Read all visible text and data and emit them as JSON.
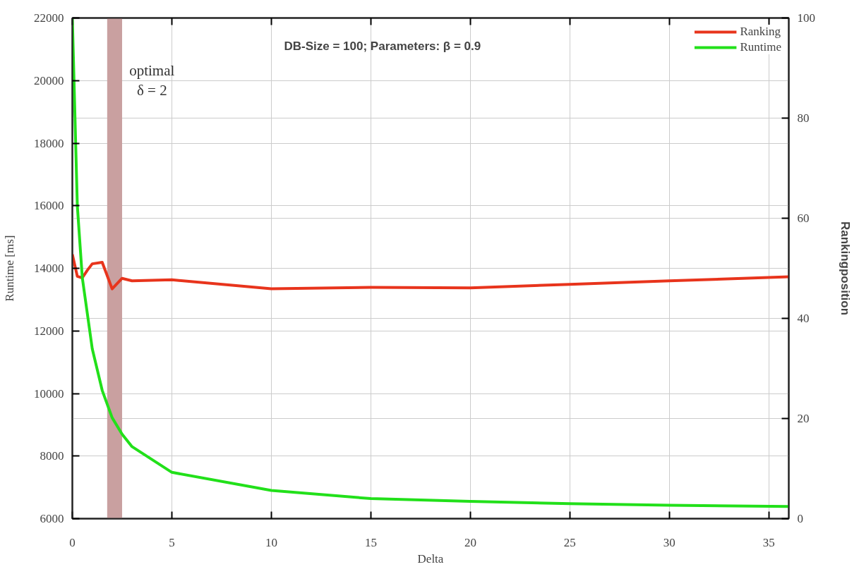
{
  "chart_data": {
    "type": "line",
    "title": "DB-Size = 100; Parameters: β = 0.9",
    "xlabel": "Delta",
    "ylabel": "Runtime [ms]",
    "y2label": "Rankingposition",
    "xlim": [
      0,
      36
    ],
    "xticks": [
      0,
      5,
      10,
      15,
      20,
      25,
      30,
      35
    ],
    "ylim": [
      6000,
      22000
    ],
    "yticks": [
      6000,
      8000,
      10000,
      12000,
      14000,
      16000,
      18000,
      20000,
      22000
    ],
    "y2lim": [
      0,
      100
    ],
    "y2ticks": [
      0,
      20,
      40,
      60,
      80,
      100
    ],
    "grid": true,
    "legend": "top right",
    "bands": [
      {
        "axis": "x",
        "from": 1.75,
        "to": 2.5,
        "label": "optimal\nδ = 2",
        "color": "#c9a0a0"
      }
    ],
    "series": [
      {
        "name": "Ranking",
        "color": "#e8341c",
        "axis": "y2",
        "x": [
          0,
          0.25,
          0.5,
          0.75,
          1,
          1.5,
          2,
          2.5,
          3,
          5,
          10,
          15,
          20,
          25,
          30,
          36
        ],
        "values": [
          52.8,
          48.4,
          48.1,
          49.6,
          50.9,
          51.2,
          45.9,
          48.0,
          47.5,
          47.7,
          45.9,
          46.2,
          46.1,
          46.8,
          47.5,
          48.3
        ]
      },
      {
        "name": "Runtime",
        "color": "#22e01a",
        "x": [
          0,
          0.25,
          0.5,
          1,
          1.5,
          2,
          2.5,
          3,
          5,
          10,
          15,
          20,
          25,
          30,
          36
        ],
        "values": [
          22000,
          16000,
          13700,
          11430,
          10100,
          9225,
          8700,
          8300,
          7480,
          6900,
          6640,
          6550,
          6480,
          6430,
          6390
        ]
      }
    ]
  }
}
